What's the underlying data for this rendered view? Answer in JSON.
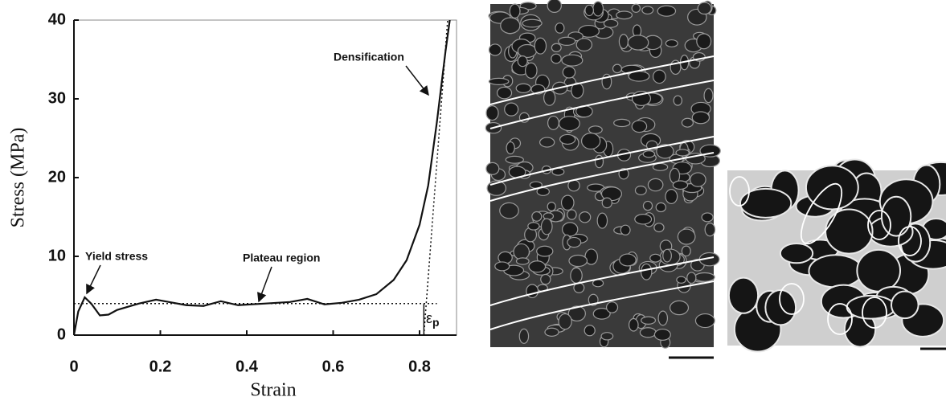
{
  "chart_data": {
    "type": "line",
    "x_label": "Strain",
    "y_label": "Stress (MPa)",
    "x": [
      0,
      0.01,
      0.025,
      0.04,
      0.06,
      0.08,
      0.1,
      0.15,
      0.19,
      0.22,
      0.26,
      0.3,
      0.34,
      0.38,
      0.44,
      0.5,
      0.54,
      0.58,
      0.62,
      0.66,
      0.7,
      0.74,
      0.77,
      0.8,
      0.82,
      0.84,
      0.86,
      0.87
    ],
    "series": [
      {
        "color": "#111111",
        "values": [
          0,
          3,
          4.8,
          4,
          2.5,
          2.6,
          3.2,
          4,
          4.5,
          4.2,
          3.8,
          3.7,
          4.3,
          3.8,
          4,
          4.2,
          4.6,
          3.9,
          4.1,
          4.5,
          5.2,
          7,
          9.5,
          14,
          19,
          27,
          36,
          40
        ]
      }
    ],
    "xlim": [
      0,
      0.9
    ],
    "ylim": [
      0,
      40
    ],
    "xticks": [
      0,
      0.2,
      0.4,
      0.6,
      0.8
    ],
    "yticks": [
      0,
      10,
      20,
      30,
      40
    ],
    "plateau_stress": 4,
    "densification_strain": 0.81,
    "tangent_top_strain": 0.865,
    "annotations": {
      "densification": "Densification",
      "yield": "Yield stress",
      "plateau": "Plateau region",
      "epsilon": {
        "symbol": "ε",
        "subscript": "p"
      }
    }
  }
}
